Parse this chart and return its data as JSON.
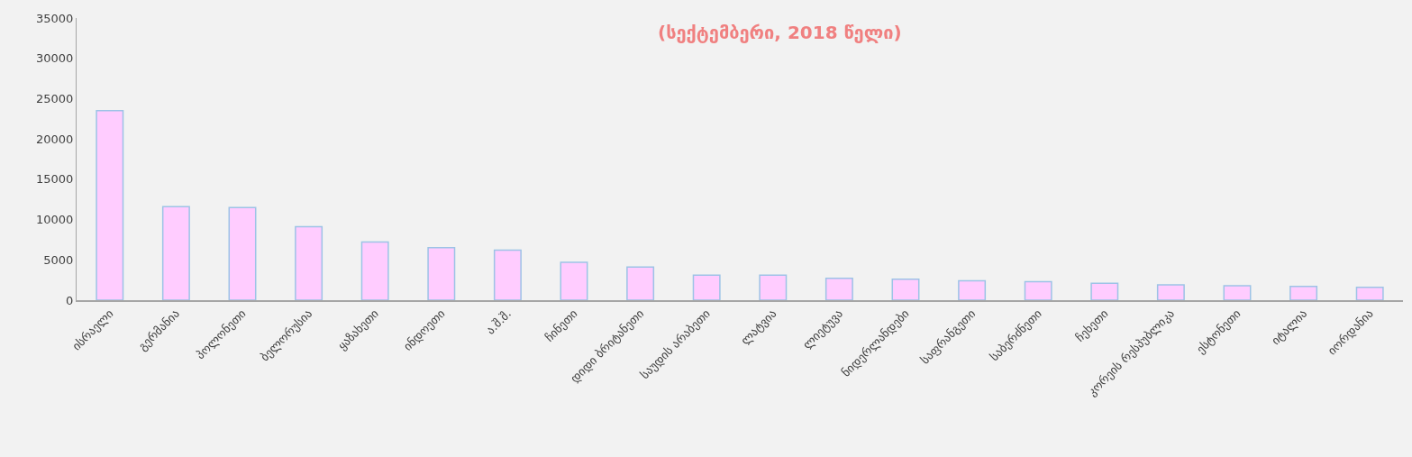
{
  "chart_data": {
    "type": "bar",
    "subtitle": "(სექტემბერი, 2018 წელი)",
    "categories": [
      "ისრაელი",
      "გერმანია",
      "პოლონეთი",
      "ბელორუსია",
      "ყაზახეთი",
      "ინდოეთი",
      "ა.შ.შ.",
      "ჩინეთი",
      "დიდი ბრიტანეთი",
      "საუდის არაბეთი",
      "ლატვია",
      "ლიეტუვა",
      "ნიდერლანდები",
      "საფრანგეთი",
      "საბერძნეთი",
      "ჩეხეთი",
      "კორეის რესპუბლიკა",
      "ესტონეთი",
      "იტალია",
      "იორდანია"
    ],
    "values": [
      23500,
      11600,
      11500,
      9100,
      7200,
      6500,
      6200,
      4700,
      4100,
      3100,
      3100,
      2700,
      2600,
      2400,
      2300,
      2100,
      1900,
      1800,
      1700,
      1600
    ],
    "color": "#ffccff",
    "ylim": [
      0,
      35000
    ],
    "yticks": [
      0,
      5000,
      10000,
      15000,
      20000,
      25000,
      30000,
      35000
    ],
    "grid": false
  }
}
